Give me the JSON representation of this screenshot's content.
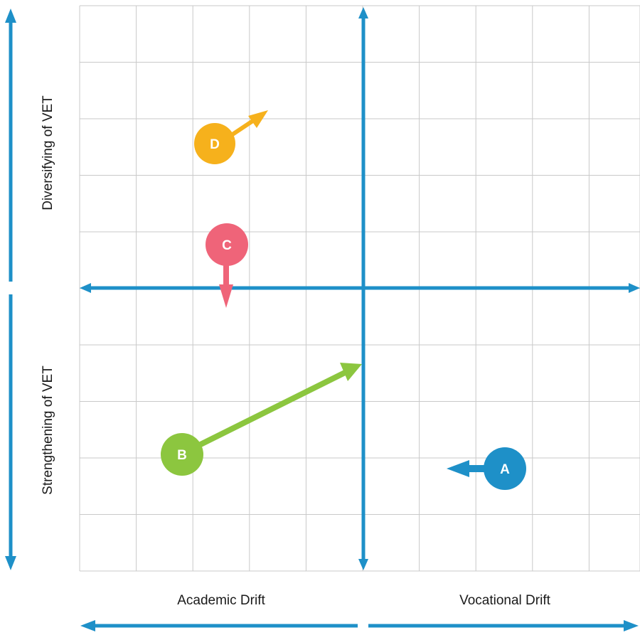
{
  "colors": {
    "axis": "#1e90c8",
    "grid": "#c9c9c9",
    "a": "#1e90c8",
    "b": "#8cc63f",
    "c": "#ef6479",
    "d": "#f6b11c"
  },
  "labels": {
    "left_axis_top": "Diversifying of VET",
    "left_axis_bottom": "Strengthening of VET",
    "bottom_left": "Academic Drift",
    "bottom_right": "Vocational Drift"
  },
  "markers": [
    {
      "id": "A",
      "label": "A",
      "color": "#1e90c8"
    },
    {
      "id": "B",
      "label": "B",
      "color": "#8cc63f"
    },
    {
      "id": "C",
      "label": "C",
      "color": "#ef6479"
    },
    {
      "id": "D",
      "label": "D",
      "color": "#f6b11c"
    }
  ]
}
